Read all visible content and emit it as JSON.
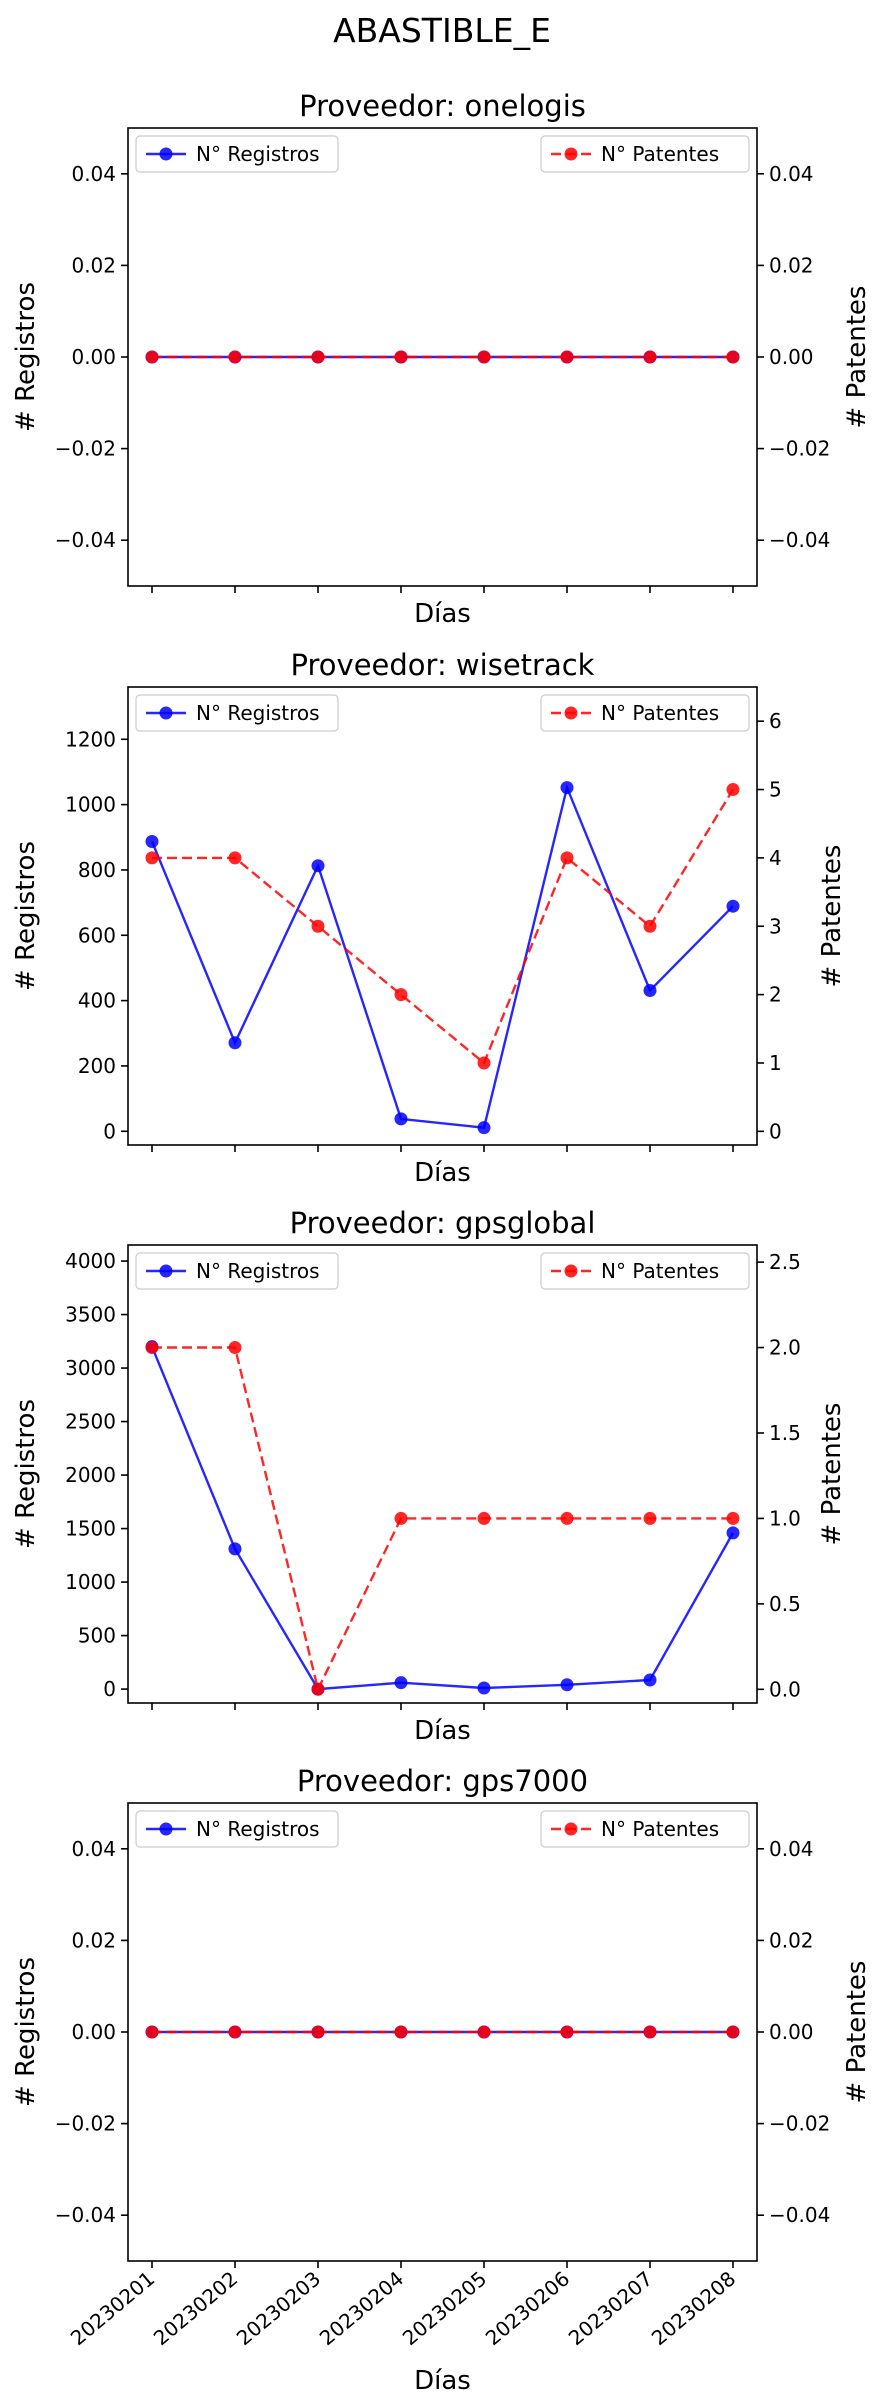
{
  "title": "ABASTIBLE_E",
  "colors": {
    "registros": "#0000ff",
    "patentes": "#ff0000"
  },
  "chart_data": [
    {
      "type": "line",
      "title": "Proveedor: onelogis",
      "xlabel": "Días",
      "ylabel_left": "# Registros",
      "ylabel_right": "# Patentes",
      "categories": [
        "20230201",
        "20230202",
        "20230203",
        "20230204",
        "20230205",
        "20230206",
        "20230207",
        "20230208"
      ],
      "show_xticklabels": false,
      "series": [
        {
          "name": "N° Registros",
          "axis": "left",
          "style": "solid",
          "values": [
            0,
            0,
            0,
            0,
            0,
            0,
            0,
            0
          ]
        },
        {
          "name": "N° Patentes",
          "axis": "right",
          "style": "dashed",
          "values": [
            0,
            0,
            0,
            0,
            0,
            0,
            0,
            0
          ]
        }
      ],
      "ylim_left": [
        -0.05,
        0.05
      ],
      "yticks_left": [
        {
          "v": -0.04,
          "label": "−0.04"
        },
        {
          "v": -0.02,
          "label": "−0.02"
        },
        {
          "v": 0,
          "label": "0.00"
        },
        {
          "v": 0.02,
          "label": "0.02"
        },
        {
          "v": 0.04,
          "label": "0.04"
        }
      ],
      "ylim_right": [
        -0.05,
        0.05
      ],
      "yticks_right": [
        {
          "v": -0.04,
          "label": "−0.04"
        },
        {
          "v": -0.02,
          "label": "−0.02"
        },
        {
          "v": 0,
          "label": "0.00"
        },
        {
          "v": 0.02,
          "label": "0.02"
        },
        {
          "v": 0.04,
          "label": "0.04"
        }
      ],
      "legend_left": "upper-left",
      "legend_right": "upper-right"
    },
    {
      "type": "line",
      "title": "Proveedor: wisetrack",
      "xlabel": "Días",
      "ylabel_left": "# Registros",
      "ylabel_right": "# Patentes",
      "categories": [
        "20230201",
        "20230202",
        "20230203",
        "20230204",
        "20230205",
        "20230206",
        "20230207",
        "20230208"
      ],
      "show_xticklabels": false,
      "series": [
        {
          "name": "N° Registros",
          "axis": "left",
          "style": "solid",
          "values": [
            887,
            271,
            813,
            38,
            11,
            1052,
            431,
            689
          ]
        },
        {
          "name": "N° Patentes",
          "axis": "right",
          "style": "dashed",
          "values": [
            4,
            4,
            3,
            2,
            1,
            4,
            3,
            5
          ]
        }
      ],
      "ylim_left": [
        -42,
        1360
      ],
      "yticks_left": [
        {
          "v": 0,
          "label": "0"
        },
        {
          "v": 200,
          "label": "200"
        },
        {
          "v": 400,
          "label": "400"
        },
        {
          "v": 600,
          "label": "600"
        },
        {
          "v": 800,
          "label": "800"
        },
        {
          "v": 1000,
          "label": "1000"
        },
        {
          "v": 1200,
          "label": "1200"
        }
      ],
      "ylim_right": [
        -0.2,
        6.5
      ],
      "yticks_right": [
        {
          "v": 0,
          "label": "0"
        },
        {
          "v": 1,
          "label": "1"
        },
        {
          "v": 2,
          "label": "2"
        },
        {
          "v": 3,
          "label": "3"
        },
        {
          "v": 4,
          "label": "4"
        },
        {
          "v": 5,
          "label": "5"
        },
        {
          "v": 6,
          "label": "6"
        }
      ],
      "legend_left": "upper-left",
      "legend_right": "upper-right"
    },
    {
      "type": "line",
      "title": "Proveedor: gpsglobal",
      "xlabel": "Días",
      "ylabel_left": "# Registros",
      "ylabel_right": "# Patentes",
      "categories": [
        "20230201",
        "20230202",
        "20230203",
        "20230204",
        "20230205",
        "20230206",
        "20230207",
        "20230208"
      ],
      "show_xticklabels": false,
      "series": [
        {
          "name": "N° Registros",
          "axis": "left",
          "style": "solid",
          "values": [
            3200,
            1310,
            0,
            60,
            10,
            40,
            85,
            1460
          ]
        },
        {
          "name": "N° Patentes",
          "axis": "right",
          "style": "dashed",
          "values": [
            2,
            2,
            0,
            1,
            1,
            1,
            1,
            1
          ]
        }
      ],
      "ylim_left": [
        -130,
        4150
      ],
      "yticks_left": [
        {
          "v": 0,
          "label": "0"
        },
        {
          "v": 500,
          "label": "500"
        },
        {
          "v": 1000,
          "label": "1000"
        },
        {
          "v": 1500,
          "label": "1500"
        },
        {
          "v": 2000,
          "label": "2000"
        },
        {
          "v": 2500,
          "label": "2500"
        },
        {
          "v": 3000,
          "label": "3000"
        },
        {
          "v": 3500,
          "label": "3500"
        },
        {
          "v": 4000,
          "label": "4000"
        }
      ],
      "ylim_right": [
        -0.08,
        2.6
      ],
      "yticks_right": [
        {
          "v": 0,
          "label": "0.0"
        },
        {
          "v": 0.5,
          "label": "0.5"
        },
        {
          "v": 1,
          "label": "1.0"
        },
        {
          "v": 1.5,
          "label": "1.5"
        },
        {
          "v": 2,
          "label": "2.0"
        },
        {
          "v": 2.5,
          "label": "2.5"
        }
      ],
      "legend_left": "upper-left",
      "legend_right": "upper-right"
    },
    {
      "type": "line",
      "title": "Proveedor: gps7000",
      "xlabel": "Días",
      "ylabel_left": "# Registros",
      "ylabel_right": "# Patentes",
      "categories": [
        "20230201",
        "20230202",
        "20230203",
        "20230204",
        "20230205",
        "20230206",
        "20230207",
        "20230208"
      ],
      "show_xticklabels": true,
      "series": [
        {
          "name": "N° Registros",
          "axis": "left",
          "style": "solid",
          "values": [
            0,
            0,
            0,
            0,
            0,
            0,
            0,
            0
          ]
        },
        {
          "name": "N° Patentes",
          "axis": "right",
          "style": "dashed",
          "values": [
            0,
            0,
            0,
            0,
            0,
            0,
            0,
            0
          ]
        }
      ],
      "ylim_left": [
        -0.05,
        0.05
      ],
      "yticks_left": [
        {
          "v": -0.04,
          "label": "−0.04"
        },
        {
          "v": -0.02,
          "label": "−0.02"
        },
        {
          "v": 0,
          "label": "0.00"
        },
        {
          "v": 0.02,
          "label": "0.02"
        },
        {
          "v": 0.04,
          "label": "0.04"
        }
      ],
      "ylim_right": [
        -0.05,
        0.05
      ],
      "yticks_right": [
        {
          "v": -0.04,
          "label": "−0.04"
        },
        {
          "v": -0.02,
          "label": "−0.02"
        },
        {
          "v": 0,
          "label": "0.00"
        },
        {
          "v": 0.02,
          "label": "0.02"
        },
        {
          "v": 0.04,
          "label": "0.04"
        }
      ],
      "legend_left": "upper-left",
      "legend_right": "upper-right"
    }
  ]
}
